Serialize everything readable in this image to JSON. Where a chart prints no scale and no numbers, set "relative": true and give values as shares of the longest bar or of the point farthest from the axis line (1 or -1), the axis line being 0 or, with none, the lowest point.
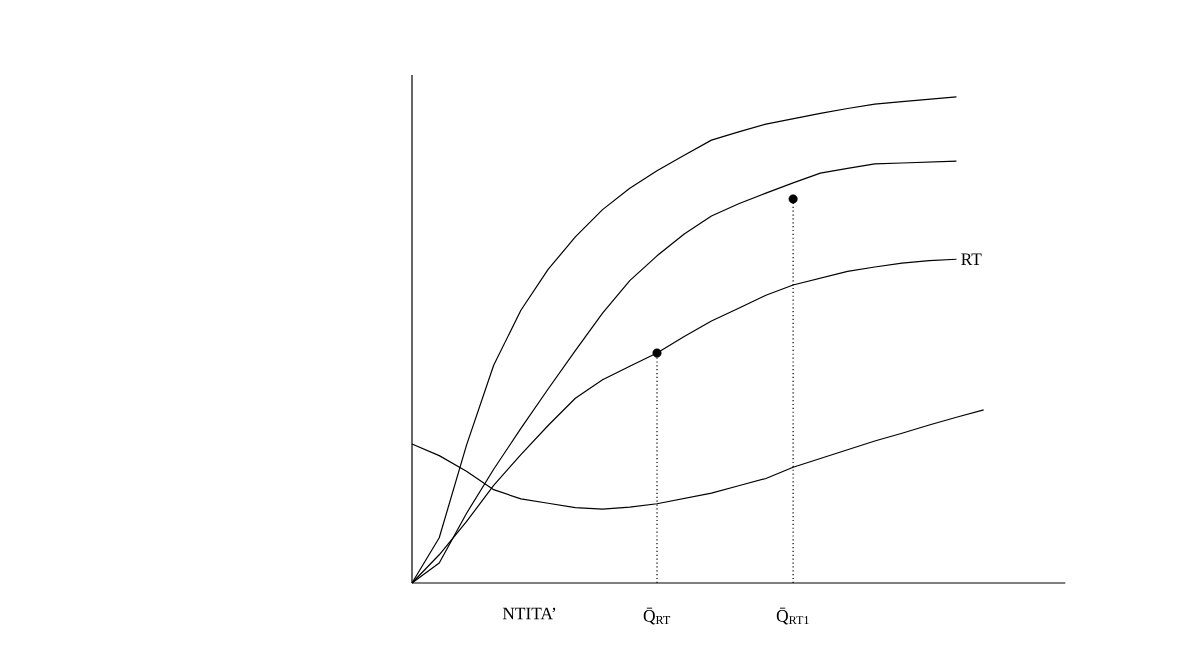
{
  "chart_data": {
    "type": "line",
    "relative": true,
    "xlabel": "NTITA’",
    "categories": [
      null,
      null,
      null,
      null,
      null,
      null,
      null,
      null,
      null,
      "Q̄$_{RT}$",
      null,
      null,
      null,
      null,
      "Q̄$_{RT1}$",
      null,
      null,
      null,
      null,
      null,
      null,
      null,
      null,
      null
    ],
    "marker": "none",
    "line_style": "solid",
    "series": [
      {
        "color": "#000000",
        "values": [
          0,
          0.093,
          0.283,
          0.448,
          0.561,
          0.645,
          0.712,
          0.768,
          0.812,
          0.848,
          0.88,
          0.911,
          0.928,
          0.944,
          0.955,
          0.966,
          0.976,
          0.985,
          0.99,
          0.995,
          1,
          null,
          null,
          null
        ]
      },
      {
        "color": "#000000",
        "values": [
          0,
          0.041,
          0.143,
          0.234,
          0.318,
          0.399,
          0.478,
          0.555,
          0.622,
          0.673,
          0.718,
          0.755,
          0.78,
          0.802,
          0.823,
          0.843,
          0.853,
          0.862,
          0.864,
          0.866,
          0.868,
          null,
          null,
          null
        ]
      },
      {
        "name": "RT",
        "color": "#000000",
        "values": [
          0,
          0.058,
          0.126,
          0.201,
          0.264,
          0.324,
          0.38,
          0.418,
          0.446,
          0.473,
          0.507,
          0.539,
          0.565,
          0.592,
          0.613,
          0.627,
          0.641,
          0.65,
          0.658,
          0.663,
          0.666,
          null,
          null,
          null
        ]
      },
      {
        "color": "#000000",
        "values": [
          0.286,
          0.262,
          0.23,
          0.192,
          0.173,
          0.164,
          0.155,
          0.152,
          0.156,
          0.163,
          0.174,
          0.185,
          0.2,
          0.215,
          0.238,
          0.256,
          0.274,
          0.292,
          0.308,
          0.325,
          0.341,
          0.356,
          null,
          null
        ]
      },
      {
        "type": "lollipop",
        "marker": "circle",
        "line_style": "dotted",
        "color": "#000000",
        "values": [
          null,
          null,
          null,
          null,
          null,
          null,
          null,
          null,
          null,
          0.473,
          null,
          null,
          null,
          null,
          0.79,
          null,
          null,
          null,
          null,
          null,
          null,
          null,
          null,
          null
        ]
      }
    ]
  }
}
